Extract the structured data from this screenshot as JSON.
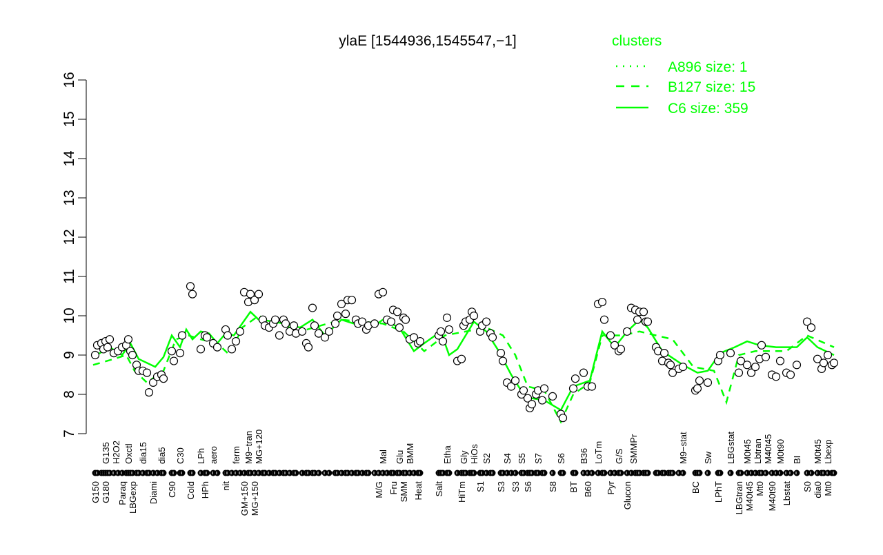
{
  "chart_data": {
    "type": "scatter",
    "title": "ylaE [1544936,1545547,−1]",
    "xlabel": "",
    "ylabel": "",
    "ylim": [
      7,
      16
    ],
    "xlim": [
      0,
      359
    ],
    "yticks": [
      "7",
      "8",
      "9",
      "10",
      "11",
      "12",
      "13",
      "14",
      "15",
      "16"
    ],
    "grid": false,
    "legend": {
      "title": "clusters",
      "placement": "top-right",
      "color": "#00ff00",
      "entries": [
        {
          "label": "A896 size: 1",
          "style": "dotted"
        },
        {
          "label": "B127 size: 15",
          "style": "dashed"
        },
        {
          "label": "C6 size: 359",
          "style": "solid"
        }
      ]
    },
    "points": [
      [
        1,
        9.0
      ],
      [
        2,
        9.25
      ],
      [
        4,
        9.3
      ],
      [
        5,
        9.15
      ],
      [
        6,
        9.35
      ],
      [
        7,
        9.2
      ],
      [
        8,
        9.4
      ],
      [
        10,
        9.05
      ],
      [
        12,
        9.1
      ],
      [
        14,
        9.2
      ],
      [
        16,
        9.25
      ],
      [
        17,
        9.4
      ],
      [
        18,
        9.1
      ],
      [
        19,
        9.0
      ],
      [
        21,
        8.75
      ],
      [
        22,
        8.6
      ],
      [
        24,
        8.6
      ],
      [
        26,
        8.55
      ],
      [
        27,
        8.05
      ],
      [
        29,
        8.3
      ],
      [
        31,
        8.45
      ],
      [
        33,
        8.5
      ],
      [
        34,
        8.4
      ],
      [
        38,
        9.1
      ],
      [
        39,
        8.85
      ],
      [
        42,
        9.05
      ],
      [
        43,
        9.5
      ],
      [
        47,
        10.75
      ],
      [
        48,
        10.55
      ],
      [
        52,
        9.15
      ],
      [
        54,
        9.5
      ],
      [
        55,
        9.45
      ],
      [
        58,
        9.3
      ],
      [
        60,
        9.2
      ],
      [
        64,
        9.65
      ],
      [
        65,
        9.5
      ],
      [
        67,
        9.15
      ],
      [
        69,
        9.35
      ],
      [
        71,
        9.6
      ],
      [
        73,
        10.6
      ],
      [
        75,
        10.35
      ],
      [
        76,
        10.55
      ],
      [
        78,
        10.4
      ],
      [
        80,
        10.55
      ],
      [
        82,
        9.9
      ],
      [
        83,
        9.75
      ],
      [
        85,
        9.7
      ],
      [
        87,
        9.8
      ],
      [
        88,
        9.9
      ],
      [
        90,
        9.5
      ],
      [
        92,
        9.9
      ],
      [
        93,
        9.8
      ],
      [
        95,
        9.6
      ],
      [
        97,
        9.75
      ],
      [
        98,
        9.55
      ],
      [
        101,
        9.6
      ],
      [
        103,
        9.3
      ],
      [
        104,
        9.2
      ],
      [
        106,
        10.2
      ],
      [
        107,
        9.75
      ],
      [
        109,
        9.55
      ],
      [
        112,
        9.45
      ],
      [
        114,
        9.6
      ],
      [
        117,
        9.8
      ],
      [
        118,
        10.0
      ],
      [
        120,
        10.3
      ],
      [
        122,
        10.05
      ],
      [
        123,
        10.4
      ],
      [
        125,
        10.4
      ],
      [
        127,
        9.9
      ],
      [
        128,
        9.8
      ],
      [
        130,
        9.85
      ],
      [
        132,
        9.65
      ],
      [
        133,
        9.75
      ],
      [
        136,
        9.8
      ],
      [
        138,
        10.55
      ],
      [
        140,
        10.6
      ],
      [
        142,
        9.9
      ],
      [
        144,
        9.85
      ],
      [
        145,
        10.15
      ],
      [
        147,
        10.1
      ],
      [
        148,
        9.7
      ],
      [
        150,
        9.95
      ],
      [
        151,
        9.9
      ],
      [
        153,
        9.4
      ],
      [
        155,
        9.45
      ],
      [
        157,
        9.3
      ],
      [
        158,
        9.35
      ],
      [
        167,
        9.5
      ],
      [
        168,
        9.6
      ],
      [
        169,
        9.35
      ],
      [
        171,
        9.95
      ],
      [
        172,
        9.65
      ],
      [
        176,
        8.85
      ],
      [
        178,
        8.9
      ],
      [
        179,
        9.75
      ],
      [
        180,
        9.85
      ],
      [
        182,
        9.9
      ],
      [
        183,
        10.1
      ],
      [
        184,
        10.0
      ],
      [
        187,
        9.6
      ],
      [
        188,
        9.75
      ],
      [
        190,
        9.85
      ],
      [
        192,
        9.55
      ],
      [
        193,
        9.45
      ],
      [
        197,
        9.05
      ],
      [
        198,
        8.85
      ],
      [
        200,
        8.3
      ],
      [
        202,
        8.2
      ],
      [
        204,
        8.35
      ],
      [
        207,
        8.0
      ],
      [
        208,
        8.1
      ],
      [
        210,
        7.9
      ],
      [
        211,
        7.65
      ],
      [
        212,
        7.75
      ],
      [
        214,
        8.0
      ],
      [
        215,
        8.1
      ],
      [
        217,
        7.85
      ],
      [
        218,
        8.15
      ],
      [
        222,
        7.95
      ],
      [
        226,
        7.5
      ],
      [
        227,
        7.4
      ],
      [
        232,
        8.15
      ],
      [
        233,
        8.4
      ],
      [
        237,
        8.55
      ],
      [
        239,
        8.2
      ],
      [
        241,
        8.2
      ],
      [
        244,
        10.3
      ],
      [
        246,
        10.35
      ],
      [
        247,
        9.9
      ],
      [
        250,
        9.5
      ],
      [
        252,
        9.25
      ],
      [
        254,
        9.1
      ],
      [
        255,
        9.15
      ],
      [
        258,
        9.6
      ],
      [
        260,
        10.2
      ],
      [
        262,
        10.15
      ],
      [
        263,
        9.9
      ],
      [
        264,
        10.1
      ],
      [
        266,
        10.1
      ],
      [
        267,
        9.85
      ],
      [
        268,
        9.85
      ],
      [
        272,
        9.2
      ],
      [
        273,
        9.1
      ],
      [
        275,
        8.85
      ],
      [
        276,
        9.05
      ],
      [
        278,
        8.8
      ],
      [
        279,
        8.75
      ],
      [
        280,
        8.55
      ],
      [
        283,
        8.65
      ],
      [
        285,
        8.7
      ],
      [
        291,
        8.1
      ],
      [
        292,
        8.15
      ],
      [
        293,
        8.35
      ],
      [
        297,
        8.3
      ],
      [
        302,
        8.85
      ],
      [
        303,
        9.0
      ],
      [
        308,
        9.05
      ],
      [
        312,
        8.55
      ],
      [
        313,
        8.85
      ],
      [
        316,
        8.75
      ],
      [
        318,
        8.55
      ],
      [
        320,
        8.7
      ],
      [
        322,
        8.9
      ],
      [
        323,
        9.25
      ],
      [
        325,
        8.95
      ],
      [
        328,
        8.5
      ],
      [
        330,
        8.45
      ],
      [
        332,
        8.85
      ],
      [
        335,
        8.55
      ],
      [
        337,
        8.5
      ],
      [
        340,
        8.75
      ],
      [
        345,
        9.85
      ],
      [
        347,
        9.7
      ],
      [
        350,
        8.9
      ],
      [
        352,
        8.65
      ],
      [
        353,
        8.8
      ],
      [
        355,
        9.0
      ],
      [
        357,
        8.75
      ],
      [
        358,
        8.8
      ]
    ],
    "series": [
      {
        "name": "C6",
        "style": "solid",
        "values": [
          [
            0,
            8.95
          ],
          [
            8,
            9.2
          ],
          [
            14,
            9.0
          ],
          [
            18,
            9.3
          ],
          [
            22,
            8.9
          ],
          [
            26,
            8.8
          ],
          [
            30,
            8.7
          ],
          [
            34,
            8.95
          ],
          [
            38,
            9.5
          ],
          [
            42,
            9.2
          ],
          [
            45,
            9.65
          ],
          [
            48,
            9.4
          ],
          [
            52,
            9.6
          ],
          [
            56,
            9.55
          ],
          [
            60,
            9.3
          ],
          [
            64,
            9.55
          ],
          [
            68,
            9.5
          ],
          [
            72,
            9.8
          ],
          [
            76,
            10.1
          ],
          [
            80,
            9.9
          ],
          [
            88,
            9.85
          ],
          [
            100,
            9.7
          ],
          [
            106,
            9.9
          ],
          [
            112,
            9.5
          ],
          [
            120,
            9.9
          ],
          [
            126,
            9.8
          ],
          [
            136,
            9.75
          ],
          [
            140,
            9.9
          ],
          [
            148,
            9.7
          ],
          [
            155,
            9.1
          ],
          [
            160,
            9.3
          ],
          [
            168,
            9.6
          ],
          [
            172,
            9.0
          ],
          [
            176,
            9.15
          ],
          [
            180,
            9.5
          ],
          [
            184,
            9.85
          ],
          [
            190,
            9.6
          ],
          [
            196,
            9.1
          ],
          [
            202,
            8.5
          ],
          [
            208,
            8.0
          ],
          [
            212,
            7.9
          ],
          [
            218,
            7.85
          ],
          [
            226,
            7.6
          ],
          [
            232,
            8.2
          ],
          [
            240,
            8.35
          ],
          [
            246,
            9.6
          ],
          [
            252,
            9.2
          ],
          [
            258,
            9.6
          ],
          [
            264,
            9.9
          ],
          [
            268,
            9.7
          ],
          [
            275,
            9.1
          ],
          [
            285,
            8.75
          ],
          [
            292,
            8.55
          ],
          [
            297,
            8.6
          ],
          [
            303,
            9.05
          ],
          [
            310,
            9.2
          ],
          [
            316,
            9.35
          ],
          [
            322,
            9.25
          ],
          [
            330,
            9.2
          ],
          [
            340,
            9.2
          ],
          [
            345,
            9.45
          ],
          [
            350,
            9.2
          ],
          [
            358,
            9.0
          ]
        ]
      },
      {
        "name": "B127",
        "style": "dashed",
        "values": [
          [
            0,
            8.75
          ],
          [
            10,
            8.9
          ],
          [
            16,
            9.0
          ],
          [
            20,
            8.6
          ],
          [
            26,
            8.3
          ],
          [
            34,
            8.6
          ],
          [
            40,
            9.4
          ],
          [
            46,
            9.5
          ],
          [
            52,
            9.4
          ],
          [
            60,
            9.3
          ],
          [
            66,
            9.0
          ],
          [
            72,
            9.7
          ],
          [
            80,
            10.0
          ],
          [
            100,
            9.6
          ],
          [
            120,
            9.9
          ],
          [
            140,
            9.8
          ],
          [
            150,
            9.6
          ],
          [
            160,
            9.1
          ],
          [
            170,
            9.5
          ],
          [
            180,
            9.6
          ],
          [
            190,
            9.7
          ],
          [
            198,
            9.5
          ],
          [
            204,
            9.0
          ],
          [
            210,
            8.2
          ],
          [
            218,
            8.1
          ],
          [
            226,
            7.3
          ],
          [
            232,
            8.0
          ],
          [
            240,
            8.3
          ],
          [
            246,
            9.5
          ],
          [
            256,
            9.5
          ],
          [
            264,
            9.6
          ],
          [
            272,
            9.5
          ],
          [
            280,
            9.4
          ],
          [
            290,
            8.7
          ],
          [
            300,
            8.6
          ],
          [
            306,
            7.8
          ],
          [
            312,
            9.0
          ],
          [
            320,
            9.1
          ],
          [
            335,
            9.1
          ],
          [
            345,
            9.5
          ],
          [
            358,
            9.2
          ]
        ]
      }
    ],
    "x_labels_bottom": [
      [
        "G150",
        1
      ],
      [
        "G180",
        4
      ],
      [
        "Paraq",
        14
      ],
      [
        "LBGexp",
        19
      ],
      [
        "Diami",
        29
      ],
      [
        "C90",
        38
      ],
      [
        "Cold",
        47
      ],
      [
        "HPh",
        54
      ],
      [
        "nit",
        64
      ],
      [
        "GM+150",
        73
      ],
      [
        "MG+150",
        76
      ],
      [
        "M/G",
        138
      ],
      [
        "Fru",
        145
      ],
      [
        "SMM",
        150
      ],
      [
        "Heat",
        157
      ],
      [
        "Salt",
        167
      ],
      [
        "HiTm",
        178
      ],
      [
        "S1",
        187
      ],
      [
        "S3",
        197
      ],
      [
        "S3",
        204
      ],
      [
        "S6",
        210
      ],
      [
        "S8",
        222
      ],
      [
        "BT",
        232
      ],
      [
        "B60",
        239
      ],
      [
        "Pyr",
        250
      ],
      [
        "Glucon",
        258
      ],
      [
        "BC",
        291
      ],
      [
        "LPhT",
        302
      ],
      [
        "LBGtran",
        312
      ],
      [
        "M40t45",
        316
      ],
      [
        "Mt0",
        322
      ],
      [
        "M40t90",
        328
      ],
      [
        "Lbstat",
        335
      ],
      [
        "S0",
        345
      ],
      [
        "dia0",
        350
      ],
      [
        "Mt0",
        355
      ]
    ],
    "x_labels_top": [
      [
        "G135",
        6
      ],
      [
        "H2O2",
        10
      ],
      [
        "Oxctl",
        17
      ],
      [
        "dia15",
        24
      ],
      [
        "dia5",
        33
      ],
      [
        "C30",
        42
      ],
      [
        "LPh",
        52
      ],
      [
        "aero",
        58
      ],
      [
        "ferm",
        69
      ],
      [
        "M9−tran",
        75
      ],
      [
        "MG+120",
        78
      ],
      [
        "Mal",
        140
      ],
      [
        "Glu",
        148
      ],
      [
        "BMM",
        153
      ],
      [
        "Etha",
        171
      ],
      [
        "Gly",
        179
      ],
      [
        "HiOs",
        183
      ],
      [
        "S2",
        190
      ],
      [
        "S4",
        200
      ],
      [
        "S5",
        207
      ],
      [
        "S7",
        215
      ],
      [
        "S6",
        226
      ],
      [
        "B36",
        237
      ],
      [
        "LoTm",
        244
      ],
      [
        "G/S",
        254
      ],
      [
        "SMMPr",
        261
      ],
      [
        "M9−stat",
        285
      ],
      [
        "Sw",
        297
      ],
      [
        "LBGstat",
        308
      ],
      [
        "M0t45",
        316
      ],
      [
        "Lbtran",
        320
      ],
      [
        "M40t45",
        323
      ],
      [
        "M0t90",
        332
      ],
      [
        "BI",
        340
      ],
      [
        "M0t45",
        350
      ],
      [
        "Lbexp",
        355
      ]
    ]
  }
}
